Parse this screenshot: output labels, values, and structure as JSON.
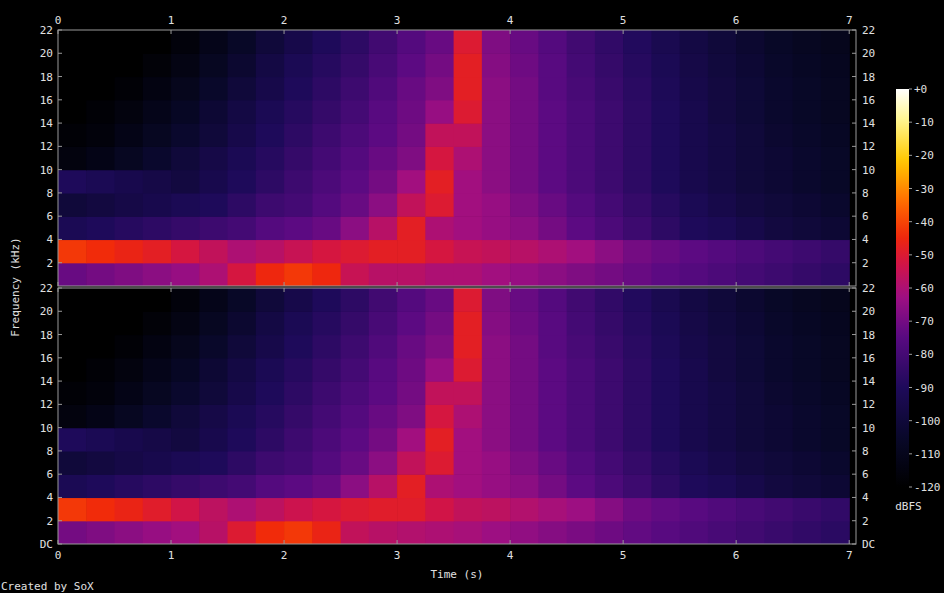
{
  "chart_data": {
    "type": "heatmap",
    "x_label": "Time (s)",
    "y_label": "Frequency (kHz)",
    "credit": "Created by SoX",
    "xlim": [
      0,
      7.06
    ],
    "xticks": [
      0,
      1,
      2,
      3,
      4,
      5,
      6,
      7
    ],
    "ylim": [
      0,
      22
    ],
    "x_edges": [
      0,
      0.25,
      0.5,
      0.75,
      1,
      1.25,
      1.5,
      1.75,
      2,
      2.25,
      2.5,
      2.75,
      3,
      3.25,
      3.5,
      3.75,
      4,
      4.25,
      4.5,
      4.75,
      5,
      5.25,
      5.5,
      5.75,
      6,
      6.25,
      6.5,
      6.75,
      7
    ],
    "y_edges": [
      0,
      2,
      4,
      6,
      8,
      10,
      12,
      14,
      16,
      18,
      20,
      22
    ],
    "colorbar": {
      "label": "dBFS",
      "lim": [
        -120,
        0
      ],
      "ticks": [
        {
          "value": 0,
          "label": "+0"
        },
        -10,
        -20,
        -30,
        -40,
        -50,
        -60,
        -70,
        -80,
        -90,
        -100,
        -110,
        -120
      ]
    },
    "panels": [
      {
        "yticks": [
          2,
          4,
          6,
          8,
          10,
          12,
          14,
          16,
          18,
          20,
          22
        ],
        "values": [
          [
            -72,
            -70,
            -68,
            -66,
            -64,
            -60,
            -52,
            -45,
            -42,
            -45,
            -55,
            -58,
            -58,
            -60,
            -60,
            -62,
            -64,
            -66,
            -68,
            -70,
            -72,
            -74,
            -76,
            -78,
            -80,
            -82,
            -84,
            -86
          ],
          [
            -42,
            -44,
            -46,
            -48,
            -52,
            -56,
            -60,
            -58,
            -55,
            -52,
            -50,
            -48,
            -48,
            -52,
            -55,
            -56,
            -58,
            -60,
            -62,
            -66,
            -70,
            -72,
            -74,
            -76,
            -78,
            -80,
            -82,
            -84
          ],
          [
            -92,
            -90,
            -88,
            -86,
            -84,
            -82,
            -80,
            -76,
            -74,
            -72,
            -66,
            -58,
            -48,
            -60,
            -62,
            -64,
            -66,
            -70,
            -74,
            -78,
            -82,
            -86,
            -90,
            -92,
            -95,
            -98,
            -100,
            -102
          ],
          [
            -100,
            -98,
            -96,
            -94,
            -92,
            -90,
            -86,
            -82,
            -80,
            -76,
            -72,
            -66,
            -56,
            -50,
            -62,
            -64,
            -68,
            -72,
            -76,
            -80,
            -84,
            -88,
            -92,
            -95,
            -98,
            -100,
            -102,
            -104
          ],
          [
            -90,
            -92,
            -94,
            -96,
            -98,
            -94,
            -90,
            -86,
            -82,
            -78,
            -74,
            -70,
            -62,
            -48,
            -62,
            -66,
            -70,
            -74,
            -78,
            -82,
            -86,
            -90,
            -94,
            -97,
            -100,
            -102,
            -104,
            -106
          ],
          [
            -115,
            -112,
            -108,
            -104,
            -100,
            -96,
            -92,
            -88,
            -84,
            -80,
            -76,
            -72,
            -68,
            -52,
            -60,
            -66,
            -70,
            -74,
            -78,
            -82,
            -86,
            -90,
            -94,
            -97,
            -100,
            -102,
            -104,
            -106
          ],
          [
            -118,
            -116,
            -112,
            -108,
            -104,
            -100,
            -95,
            -90,
            -86,
            -82,
            -78,
            -74,
            -70,
            -56,
            -56,
            -66,
            -70,
            -74,
            -78,
            -82,
            -86,
            -90,
            -94,
            -97,
            -100,
            -103,
            -105,
            -107
          ],
          [
            -120,
            -118,
            -115,
            -111,
            -107,
            -102,
            -97,
            -92,
            -88,
            -84,
            -80,
            -75,
            -71,
            -64,
            -50,
            -66,
            -70,
            -74,
            -78,
            -82,
            -86,
            -90,
            -94,
            -98,
            -101,
            -104,
            -106,
            -108
          ],
          [
            -120,
            -120,
            -118,
            -114,
            -110,
            -105,
            -100,
            -95,
            -90,
            -86,
            -82,
            -77,
            -72,
            -68,
            -48,
            -66,
            -70,
            -75,
            -79,
            -83,
            -87,
            -91,
            -95,
            -98,
            -101,
            -104,
            -106,
            -108
          ],
          [
            -120,
            -120,
            -120,
            -117,
            -113,
            -108,
            -103,
            -97,
            -92,
            -88,
            -84,
            -79,
            -74,
            -70,
            -48,
            -67,
            -71,
            -75,
            -80,
            -84,
            -88,
            -92,
            -96,
            -99,
            -102,
            -105,
            -107,
            -109
          ],
          [
            -120,
            -120,
            -120,
            -120,
            -116,
            -111,
            -106,
            -100,
            -95,
            -90,
            -86,
            -81,
            -76,
            -72,
            -50,
            -68,
            -72,
            -76,
            -81,
            -85,
            -89,
            -93,
            -97,
            -100,
            -103,
            -106,
            -108,
            -110
          ]
        ]
      },
      {
        "yticks": [
          {
            "value": 0,
            "label": "DC"
          },
          2,
          4,
          6,
          8,
          10,
          12,
          14,
          16,
          18,
          20,
          22
        ],
        "values": [
          [
            -70,
            -68,
            -66,
            -64,
            -62,
            -58,
            -50,
            -44,
            -42,
            -46,
            -56,
            -58,
            -59,
            -60,
            -61,
            -63,
            -65,
            -67,
            -69,
            -71,
            -73,
            -75,
            -77,
            -79,
            -81,
            -83,
            -85,
            -87
          ],
          [
            -42,
            -44,
            -46,
            -49,
            -53,
            -57,
            -60,
            -57,
            -54,
            -52,
            -50,
            -49,
            -49,
            -53,
            -56,
            -57,
            -59,
            -61,
            -63,
            -67,
            -71,
            -73,
            -75,
            -77,
            -79,
            -81,
            -83,
            -85
          ],
          [
            -92,
            -90,
            -88,
            -86,
            -84,
            -82,
            -80,
            -76,
            -74,
            -72,
            -66,
            -58,
            -48,
            -60,
            -62,
            -64,
            -66,
            -70,
            -74,
            -78,
            -82,
            -86,
            -90,
            -92,
            -95,
            -98,
            -100,
            -102
          ],
          [
            -100,
            -98,
            -96,
            -94,
            -92,
            -90,
            -86,
            -82,
            -80,
            -76,
            -72,
            -66,
            -56,
            -50,
            -62,
            -64,
            -68,
            -72,
            -76,
            -80,
            -84,
            -88,
            -92,
            -95,
            -98,
            -100,
            -102,
            -104
          ],
          [
            -90,
            -92,
            -94,
            -96,
            -98,
            -94,
            -90,
            -86,
            -82,
            -78,
            -74,
            -70,
            -62,
            -48,
            -62,
            -66,
            -70,
            -74,
            -78,
            -82,
            -86,
            -90,
            -94,
            -97,
            -100,
            -102,
            -104,
            -106
          ],
          [
            -115,
            -112,
            -108,
            -104,
            -100,
            -96,
            -92,
            -88,
            -84,
            -80,
            -76,
            -72,
            -68,
            -52,
            -60,
            -66,
            -70,
            -74,
            -78,
            -82,
            -86,
            -90,
            -94,
            -97,
            -100,
            -102,
            -104,
            -106
          ],
          [
            -118,
            -116,
            -112,
            -108,
            -104,
            -100,
            -95,
            -90,
            -86,
            -82,
            -78,
            -74,
            -70,
            -56,
            -56,
            -66,
            -70,
            -74,
            -78,
            -82,
            -86,
            -90,
            -94,
            -97,
            -100,
            -103,
            -105,
            -107
          ],
          [
            -120,
            -118,
            -115,
            -111,
            -107,
            -102,
            -97,
            -92,
            -88,
            -84,
            -80,
            -75,
            -71,
            -64,
            -50,
            -66,
            -70,
            -74,
            -78,
            -82,
            -86,
            -90,
            -94,
            -98,
            -101,
            -104,
            -106,
            -108
          ],
          [
            -120,
            -120,
            -118,
            -114,
            -110,
            -105,
            -100,
            -95,
            -90,
            -86,
            -82,
            -77,
            -72,
            -68,
            -48,
            -66,
            -70,
            -75,
            -79,
            -83,
            -87,
            -91,
            -95,
            -98,
            -101,
            -104,
            -106,
            -108
          ],
          [
            -120,
            -120,
            -120,
            -117,
            -113,
            -108,
            -103,
            -97,
            -92,
            -88,
            -84,
            -79,
            -74,
            -70,
            -48,
            -67,
            -71,
            -75,
            -80,
            -84,
            -88,
            -92,
            -96,
            -99,
            -102,
            -105,
            -107,
            -109
          ],
          [
            -120,
            -120,
            -120,
            -120,
            -116,
            -111,
            -106,
            -100,
            -95,
            -90,
            -86,
            -81,
            -76,
            -72,
            -50,
            -68,
            -72,
            -76,
            -81,
            -85,
            -89,
            -93,
            -97,
            -100,
            -103,
            -106,
            -108,
            -110
          ]
        ]
      }
    ]
  }
}
